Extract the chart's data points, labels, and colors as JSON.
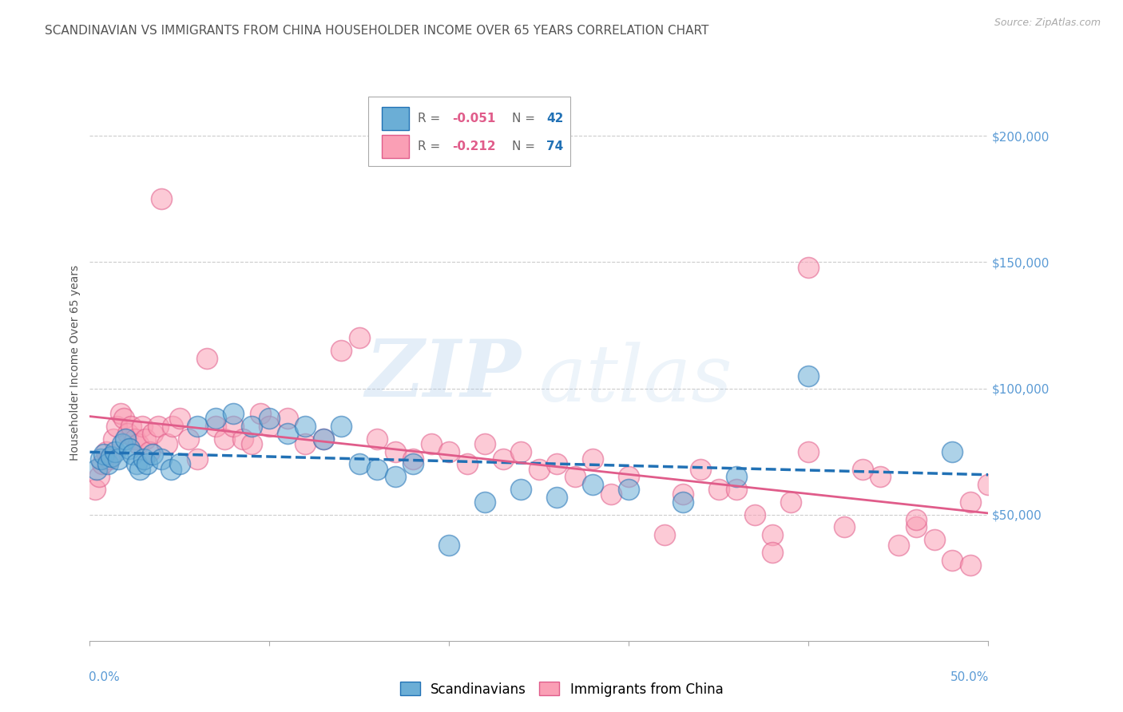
{
  "title": "SCANDINAVIAN VS IMMIGRANTS FROM CHINA HOUSEHOLDER INCOME OVER 65 YEARS CORRELATION CHART",
  "source": "Source: ZipAtlas.com",
  "ylabel": "Householder Income Over 65 years",
  "ylabel_right_ticks": [
    "$200,000",
    "$150,000",
    "$100,000",
    "$50,000"
  ],
  "ylabel_right_values": [
    200000,
    150000,
    100000,
    50000
  ],
  "xlim": [
    0.0,
    50.0
  ],
  "ylim": [
    0,
    220000
  ],
  "legend_blue_label": "Scandinavians",
  "legend_pink_label": "Immigrants from China",
  "blue_color": "#6baed6",
  "pink_color": "#fa9fb5",
  "blue_line_color": "#2171b5",
  "pink_line_color": "#e05c8a",
  "background_color": "#ffffff",
  "grid_color": "#cccccc",
  "title_color": "#555555",
  "right_label_color": "#5b9bd5",
  "scandinavians_x": [
    0.4,
    0.6,
    0.8,
    1.0,
    1.2,
    1.4,
    1.6,
    1.8,
    2.0,
    2.2,
    2.4,
    2.6,
    2.8,
    3.0,
    3.2,
    3.5,
    4.0,
    4.5,
    5.0,
    6.0,
    7.0,
    8.0,
    9.0,
    10.0,
    11.0,
    12.0,
    13.0,
    14.0,
    15.0,
    16.0,
    17.0,
    18.0,
    20.0,
    22.0,
    24.0,
    26.0,
    28.0,
    30.0,
    33.0,
    36.0,
    40.0,
    48.0
  ],
  "scandinavians_y": [
    68000,
    72000,
    74000,
    70000,
    73000,
    75000,
    72000,
    78000,
    80000,
    76000,
    74000,
    70000,
    68000,
    72000,
    70000,
    74000,
    72000,
    68000,
    70000,
    85000,
    88000,
    90000,
    85000,
    88000,
    82000,
    85000,
    80000,
    85000,
    70000,
    68000,
    65000,
    70000,
    38000,
    55000,
    60000,
    57000,
    62000,
    60000,
    55000,
    65000,
    105000,
    75000
  ],
  "china_x": [
    0.3,
    0.5,
    0.7,
    0.9,
    1.1,
    1.3,
    1.5,
    1.7,
    1.9,
    2.1,
    2.3,
    2.5,
    2.7,
    2.9,
    3.1,
    3.3,
    3.5,
    3.8,
    4.0,
    4.3,
    4.6,
    5.0,
    5.5,
    6.0,
    6.5,
    7.0,
    7.5,
    8.0,
    8.5,
    9.0,
    9.5,
    10.0,
    11.0,
    12.0,
    13.0,
    14.0,
    15.0,
    16.0,
    17.0,
    18.0,
    19.0,
    20.0,
    21.0,
    22.0,
    23.0,
    24.0,
    25.0,
    26.0,
    27.0,
    28.0,
    29.0,
    30.0,
    32.0,
    33.0,
    34.0,
    35.0,
    36.0,
    37.0,
    38.0,
    39.0,
    40.0,
    42.0,
    44.0,
    45.0,
    46.0,
    47.0,
    48.0,
    49.0,
    50.0,
    38.0,
    40.0,
    43.0,
    46.0,
    49.0
  ],
  "china_y": [
    60000,
    65000,
    70000,
    75000,
    72000,
    80000,
    85000,
    90000,
    88000,
    82000,
    85000,
    80000,
    78000,
    85000,
    80000,
    75000,
    82000,
    85000,
    175000,
    78000,
    85000,
    88000,
    80000,
    72000,
    112000,
    85000,
    80000,
    85000,
    80000,
    78000,
    90000,
    85000,
    88000,
    78000,
    80000,
    115000,
    120000,
    80000,
    75000,
    72000,
    78000,
    75000,
    70000,
    78000,
    72000,
    75000,
    68000,
    70000,
    65000,
    72000,
    58000,
    65000,
    42000,
    58000,
    68000,
    60000,
    60000,
    50000,
    42000,
    55000,
    148000,
    45000,
    65000,
    38000,
    45000,
    40000,
    32000,
    55000,
    62000,
    35000,
    75000,
    68000,
    48000,
    30000
  ]
}
